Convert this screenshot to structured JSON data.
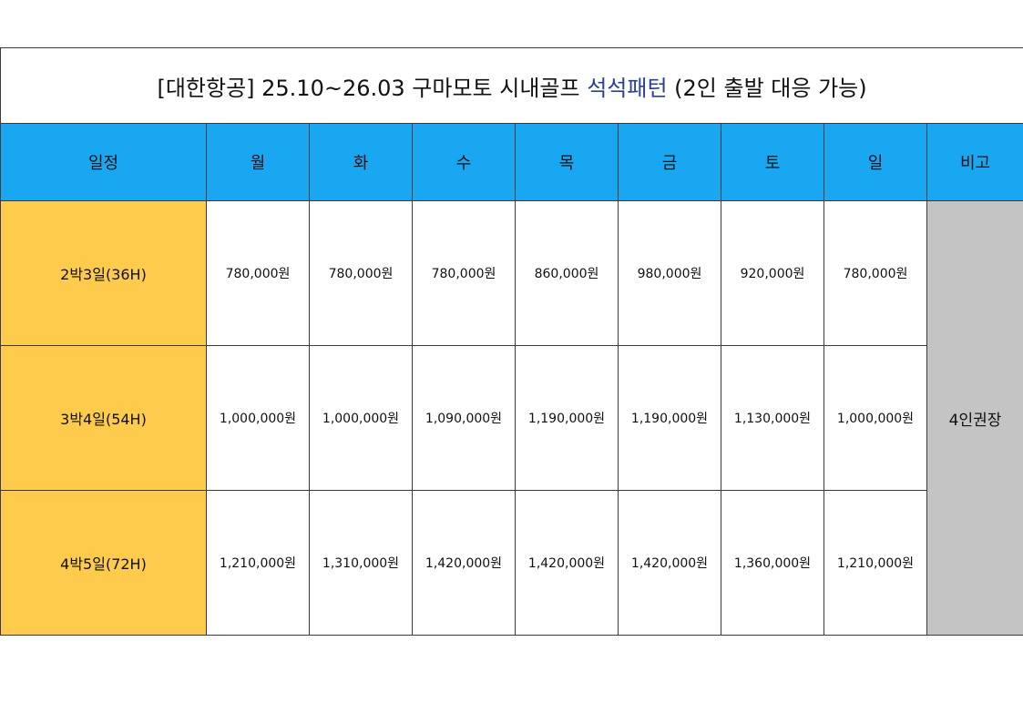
{
  "title": {
    "prefix": "[대한항공] 25.10~26.03 구마모토 시내골프 ",
    "accent": "석석패턴",
    "suffix": " (2인 출발 대응 가능)",
    "accent_color": "#2b3f9a"
  },
  "colors": {
    "header_bg": "#1aa7f2",
    "period_bg": "#fecb4c",
    "note_bg": "#c4c4c4"
  },
  "headers": [
    "일정",
    "월",
    "화",
    "수",
    "목",
    "금",
    "토",
    "일",
    "비고"
  ],
  "rows": [
    {
      "period": "2박3일(36H)",
      "prices": [
        "780,000원",
        "780,000원",
        "780,000원",
        "860,000원",
        "980,000원",
        "920,000원",
        "780,000원"
      ]
    },
    {
      "period": "3박4일(54H)",
      "prices": [
        "1,000,000원",
        "1,000,000원",
        "1,090,000원",
        "1,190,000원",
        "1,190,000원",
        "1,130,000원",
        "1,000,000원"
      ]
    },
    {
      "period": "4박5일(72H)",
      "prices": [
        "1,210,000원",
        "1,310,000원",
        "1,420,000원",
        "1,420,000원",
        "1,420,000원",
        "1,360,000원",
        "1,210,000원"
      ]
    }
  ],
  "note": "4인권장"
}
